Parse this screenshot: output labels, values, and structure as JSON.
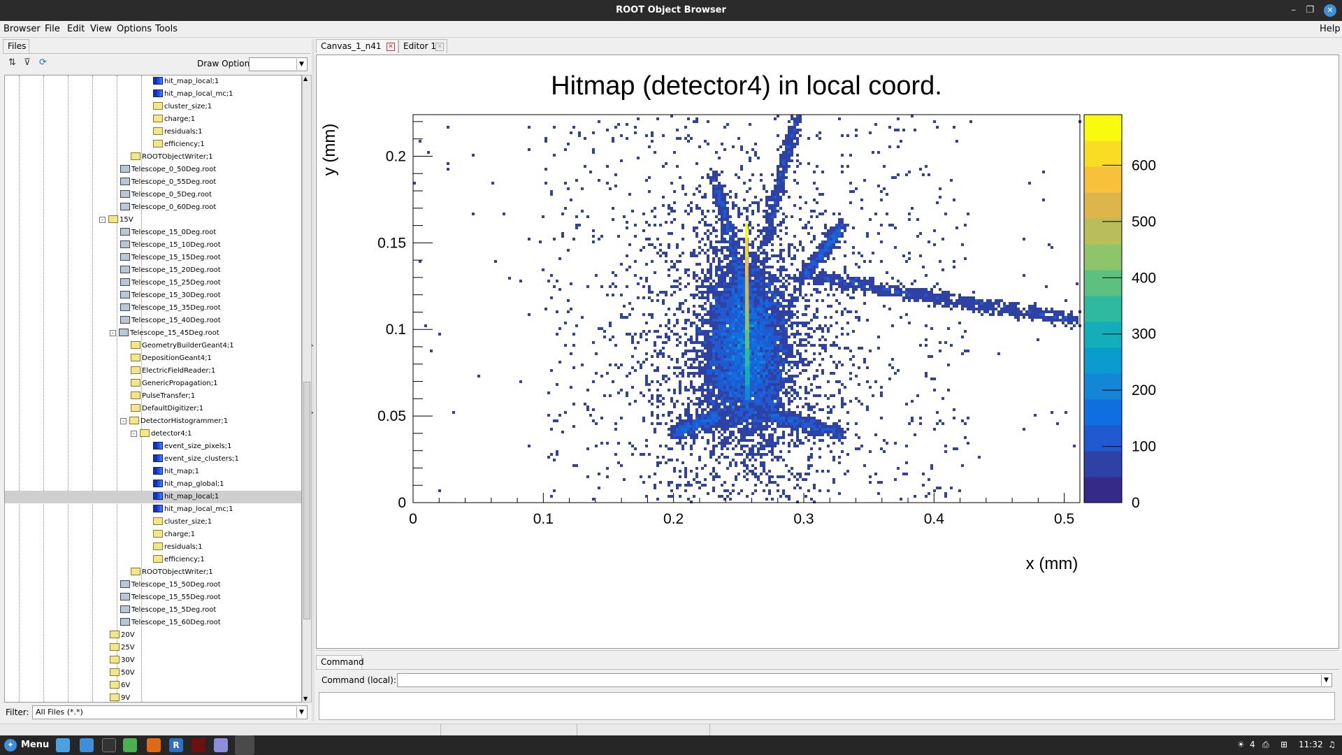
{
  "window": {
    "title": "ROOT Object Browser"
  },
  "menu": {
    "browser": "Browser",
    "file": "File",
    "edit": "Edit",
    "view": "View",
    "options": "Options",
    "tools": "Tools",
    "help": "Help"
  },
  "left": {
    "tab_files": "Files",
    "draw_option_label": "Draw Option:",
    "draw_option_value": "",
    "filter_label": "Filter:",
    "filter_value": "All Files (*.*)"
  },
  "tree": [
    {
      "label": "hit_map_local;1",
      "icon": "hist",
      "indent": 5
    },
    {
      "label": "hit_map_local_mc;1",
      "icon": "hist",
      "indent": 5
    },
    {
      "label": "cluster_size;1",
      "icon": "folder",
      "indent": 5
    },
    {
      "label": "charge;1",
      "icon": "folder",
      "indent": 5
    },
    {
      "label": "residuals;1",
      "icon": "folder",
      "indent": 5
    },
    {
      "label": "efficiency;1",
      "icon": "folder",
      "indent": 5
    },
    {
      "label": "ROOTObjectWriter;1",
      "icon": "folder",
      "indent": 3
    },
    {
      "label": "Telescope_0_50Deg.root",
      "icon": "tree",
      "indent": 2
    },
    {
      "label": "Telescope_0_55Deg.root",
      "icon": "tree",
      "indent": 2
    },
    {
      "label": "Telescope_0_5Deg.root",
      "icon": "tree",
      "indent": 2
    },
    {
      "label": "Telescope_0_60Deg.root",
      "icon": "tree",
      "indent": 2
    },
    {
      "label": "15V",
      "icon": "folder",
      "indent": 1,
      "pm": "-"
    },
    {
      "label": "Telescope_15_0Deg.root",
      "icon": "tree",
      "indent": 2
    },
    {
      "label": "Telescope_15_10Deg.root",
      "icon": "tree",
      "indent": 2
    },
    {
      "label": "Telescope_15_15Deg.root",
      "icon": "tree",
      "indent": 2
    },
    {
      "label": "Telescope_15_20Deg.root",
      "icon": "tree",
      "indent": 2
    },
    {
      "label": "Telescope_15_25Deg.root",
      "icon": "tree",
      "indent": 2
    },
    {
      "label": "Telescope_15_30Deg.root",
      "icon": "tree",
      "indent": 2
    },
    {
      "label": "Telescope_15_35Deg.root",
      "icon": "tree",
      "indent": 2
    },
    {
      "label": "Telescope_15_40Deg.root",
      "icon": "tree",
      "indent": 2
    },
    {
      "label": "Telescope_15_45Deg.root",
      "icon": "tree",
      "indent": 2,
      "pm": "-"
    },
    {
      "label": "GeometryBuilderGeant4;1",
      "icon": "folder",
      "indent": 3
    },
    {
      "label": "DepositionGeant4;1",
      "icon": "folder",
      "indent": 3
    },
    {
      "label": "ElectricFieldReader;1",
      "icon": "folder",
      "indent": 3
    },
    {
      "label": "GenericPropagation;1",
      "icon": "folder",
      "indent": 3
    },
    {
      "label": "PulseTransfer;1",
      "icon": "folder",
      "indent": 3
    },
    {
      "label": "DefaultDigitizer;1",
      "icon": "folder",
      "indent": 3
    },
    {
      "label": "DetectorHistogrammer;1",
      "icon": "folder",
      "indent": 3,
      "pm": "-"
    },
    {
      "label": "detector4;1",
      "icon": "folder",
      "indent": 4,
      "pm": "-"
    },
    {
      "label": "event_size_pixels;1",
      "icon": "hist",
      "indent": 5
    },
    {
      "label": "event_size_clusters;1",
      "icon": "hist",
      "indent": 5
    },
    {
      "label": "hit_map;1",
      "icon": "hist",
      "indent": 5
    },
    {
      "label": "hit_map_global;1",
      "icon": "hist",
      "indent": 5
    },
    {
      "label": "hit_map_local;1",
      "icon": "hist",
      "indent": 5,
      "selected": true
    },
    {
      "label": "hit_map_local_mc;1",
      "icon": "hist",
      "indent": 5
    },
    {
      "label": "cluster_size;1",
      "icon": "folder",
      "indent": 5
    },
    {
      "label": "charge;1",
      "icon": "folder",
      "indent": 5
    },
    {
      "label": "residuals;1",
      "icon": "folder",
      "indent": 5
    },
    {
      "label": "efficiency;1",
      "icon": "folder",
      "indent": 5
    },
    {
      "label": "ROOTObjectWriter;1",
      "icon": "folder",
      "indent": 3
    },
    {
      "label": "Telescope_15_50Deg.root",
      "icon": "tree",
      "indent": 2
    },
    {
      "label": "Telescope_15_55Deg.root",
      "icon": "tree",
      "indent": 2
    },
    {
      "label": "Telescope_15_5Deg.root",
      "icon": "tree",
      "indent": 2
    },
    {
      "label": "Telescope_15_60Deg.root",
      "icon": "tree",
      "indent": 2
    },
    {
      "label": "20V",
      "icon": "folder",
      "indent": 1
    },
    {
      "label": "25V",
      "icon": "folder",
      "indent": 1
    },
    {
      "label": "30V",
      "icon": "folder",
      "indent": 1
    },
    {
      "label": "50V",
      "icon": "folder",
      "indent": 1
    },
    {
      "label": "6V",
      "icon": "folder",
      "indent": 1
    },
    {
      "label": "9V",
      "icon": "folder",
      "indent": 1
    }
  ],
  "tabs": {
    "canvas": "Canvas_1_n41",
    "editor": "Editor 1"
  },
  "command": {
    "tab": "Command",
    "label": "Command (local):",
    "value": ""
  },
  "taskbar": {
    "menu": "Menu",
    "count": "4",
    "time": "11:32"
  },
  "chart_data": {
    "type": "heatmap",
    "title": "Hitmap (detector4) in local coord.",
    "xlabel": "x (mm)",
    "ylabel": "y (mm)",
    "xlim": [
      0,
      0.512
    ],
    "ylim": [
      0,
      0.224
    ],
    "xticks": [
      "0",
      "0.1",
      "0.2",
      "0.3",
      "0.4",
      "0.5"
    ],
    "yticks": [
      "0",
      "0.05",
      "0.1",
      "0.15",
      "0.2"
    ],
    "zlim": [
      0,
      690
    ],
    "zticks": [
      "0",
      "100",
      "200",
      "300",
      "400",
      "500",
      "600"
    ],
    "colormap": "viridis-like (ROOT kBird)",
    "features": {
      "core_center": [
        0.256,
        0.09
      ],
      "bright_track": {
        "x": 0.256,
        "y_from": 0.06,
        "y_to": 0.162,
        "peak": 650
      },
      "long_track": {
        "from": [
          0.31,
          0.13
        ],
        "to": [
          0.512,
          0.105
        ]
      }
    }
  }
}
